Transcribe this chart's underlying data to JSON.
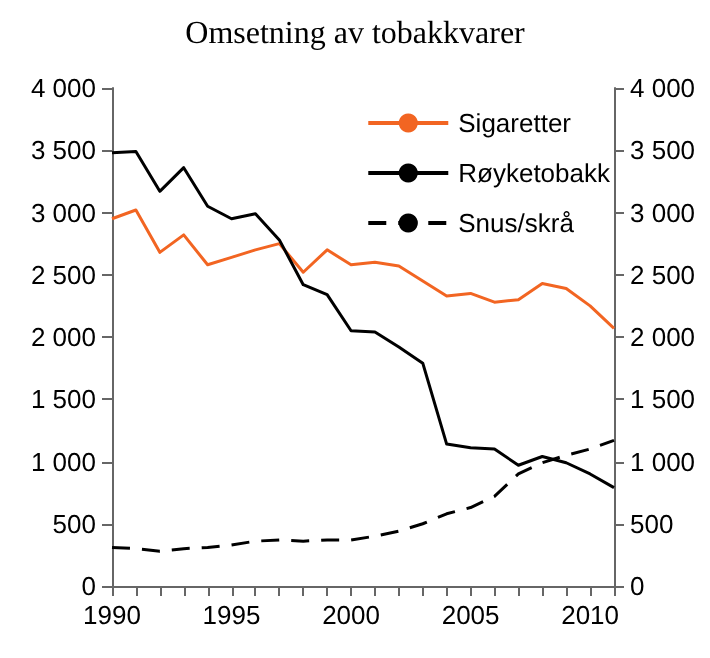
{
  "chart_data": {
    "type": "line",
    "title": "Omsetning av tobakkvarer",
    "x": [
      1990,
      1991,
      1992,
      1993,
      1994,
      1995,
      1996,
      1997,
      1998,
      1999,
      2000,
      2001,
      2002,
      2003,
      2004,
      2005,
      2006,
      2007,
      2008,
      2009,
      2010,
      2011
    ],
    "series": [
      {
        "name": "Sigaretter",
        "color": "#f26522",
        "values": [
          2950,
          3020,
          2680,
          2820,
          2580,
          2640,
          2700,
          2750,
          2520,
          2700,
          2580,
          2600,
          2570,
          2450,
          2330,
          2350,
          2280,
          2300,
          2430,
          2390,
          2250,
          2070
        ]
      },
      {
        "name": "Røyketobakk",
        "color": "#000000",
        "values": [
          3480,
          3490,
          3170,
          3360,
          3050,
          2950,
          2990,
          2780,
          2420,
          2340,
          2050,
          2040,
          1920,
          1790,
          1140,
          1110,
          1100,
          970,
          1040,
          990,
          900,
          790
        ]
      },
      {
        "name": "Snus/skrå",
        "color": "#000000",
        "line_style": "dashed",
        "values": [
          310,
          300,
          280,
          300,
          310,
          330,
          360,
          370,
          360,
          370,
          370,
          400,
          440,
          500,
          580,
          630,
          720,
          900,
          990,
          1050,
          1100,
          1170
        ]
      }
    ],
    "xlim": [
      1990,
      2011
    ],
    "xticks": [
      1990,
      1995,
      2000,
      2005,
      2010
    ],
    "ylim": [
      0,
      4000
    ],
    "yticks": [
      0,
      {
        "value": 500,
        "label": "500"
      },
      {
        "value": 1000,
        "label": "1 000"
      },
      {
        "value": 1500,
        "label": "1 500"
      },
      {
        "value": 2000,
        "label": "2 000"
      },
      {
        "value": 2500,
        "label": "2 500"
      },
      {
        "value": 3000,
        "label": "3 000"
      },
      {
        "value": 3500,
        "label": "3 500"
      },
      {
        "value": 4000,
        "label": "4 000"
      }
    ],
    "y2lim": [
      0,
      4000
    ],
    "y2ticks": [
      0,
      {
        "value": 500,
        "label": "500"
      },
      {
        "value": 1000,
        "label": "1 000"
      },
      {
        "value": 1500,
        "label": "1 500"
      },
      {
        "value": 2000,
        "label": "2 000"
      },
      {
        "value": 2500,
        "label": "2 500"
      },
      {
        "value": 3000,
        "label": "3 000"
      },
      {
        "value": 3500,
        "label": "3 500"
      },
      {
        "value": 4000,
        "label": "4 000"
      }
    ],
    "legend": "top right",
    "grid": false,
    "marker": "none",
    "line_style": "solid"
  }
}
